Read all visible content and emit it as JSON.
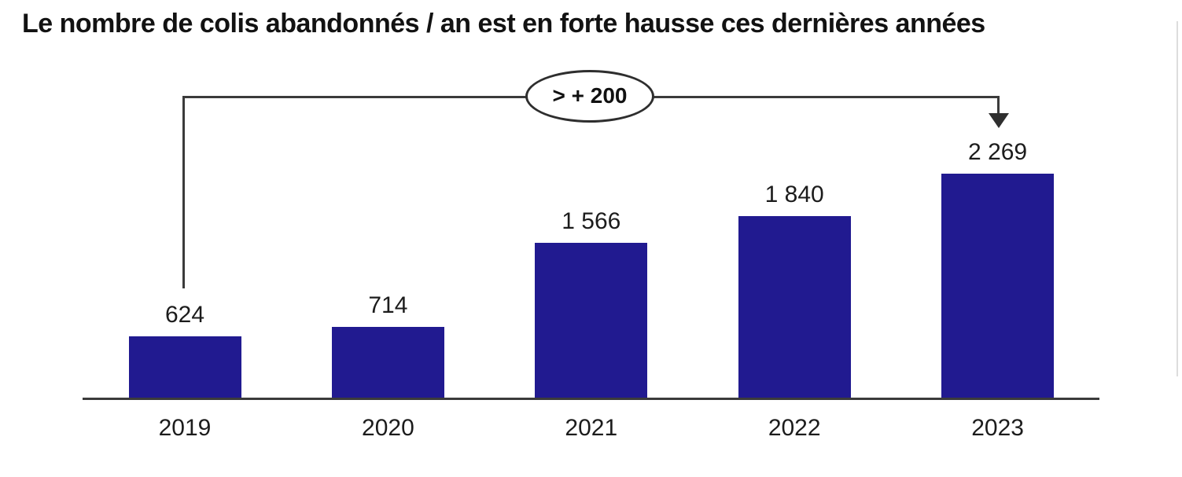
{
  "title": "Le nombre de colis abandonnés / an est en forte hausse ces dernières années",
  "chart_data": {
    "type": "bar",
    "title": "Le nombre de colis abandonnés / an est en forte hausse ces dernières années",
    "categories": [
      "2019",
      "2020",
      "2021",
      "2022",
      "2023"
    ],
    "values": [
      624,
      714,
      1566,
      1840,
      2269
    ],
    "value_labels": [
      "624",
      "714",
      "1 566",
      "1 840",
      "2 269"
    ],
    "xlabel": "",
    "ylabel": "",
    "ylim": [
      0,
      2269
    ],
    "grid": false,
    "legend": "none",
    "bar_color": "#211a90",
    "axis_color": "#3b3b3b",
    "annotation": {
      "text": "> + 200",
      "from_category": "2019",
      "to_category": "2023"
    }
  }
}
